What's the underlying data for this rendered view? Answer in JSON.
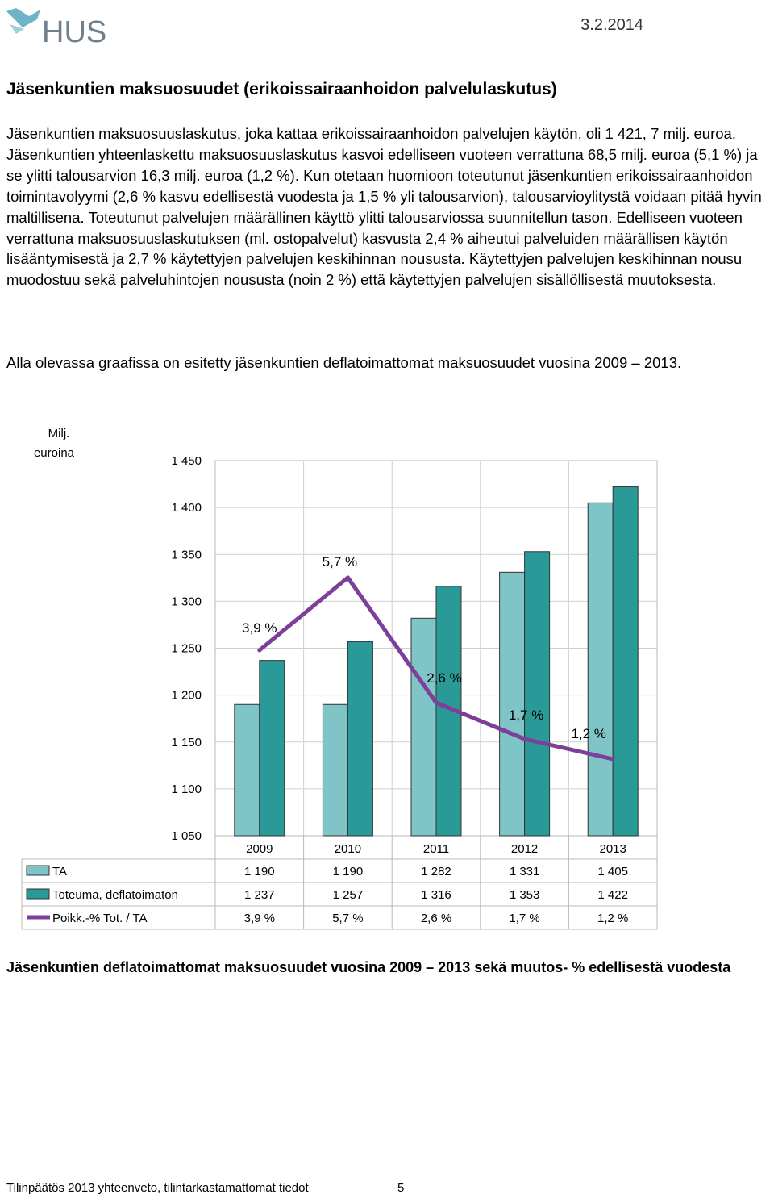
{
  "header": {
    "logo_text": "HUS",
    "date": "3.2.2014"
  },
  "section_title": "Jäsenkuntien maksuosuudet (erikoissairaanhoidon palvelulaskutus)",
  "paragraphs": [
    "Jäsenkuntien maksuosuuslaskutus, joka kattaa erikoissairaanhoidon palvelujen käytön, oli 1 421, 7 milj. euroa. Jäsenkuntien yhteenlaskettu maksuosuuslaskutus kasvoi edelliseen vuoteen verrattuna 68,5 milj. euroa (5,1 %) ja se ylitti talousarvion 16,3 milj. euroa (1,2 %). Kun otetaan huomioon toteutunut jäsenkuntien erikoissairaanhoidon toimintavolyymi (2,6 % kasvu edellisestä vuodesta ja 1,5 % yli talousarvion), talousarvioylitystä voidaan pitää hyvin maltillisena. Toteutunut palvelujen määrällinen käyttö ylitti talousarviossa suunnitellun tason. Edelliseen vuoteen verrattuna maksuosuuslaskutuksen (ml. ostopalvelut) kasvusta 2,4 % aiheutui palveluiden määrällisen käytön lisääntymisestä ja 2,7 % käytettyjen palvelujen keskihinnan noususta. Käytettyjen palvelujen keskihinnan nousu muodostuu sekä palveluhintojen noususta (noin 2 %) että käytettyjen palvelujen sisällöllisestä muutoksesta.",
    "Alla olevassa graafissa on esitetty jäsenkuntien deflatoimattomat maksuosuudet vuosina 2009 – 2013."
  ],
  "chart_data": {
    "type": "bar",
    "unit_label": "Milj. euroina",
    "categories": [
      "2009",
      "2010",
      "2011",
      "2012",
      "2013"
    ],
    "yticks": [
      "1 450",
      "1 400",
      "1 350",
      "1 300",
      "1 250",
      "1 200",
      "1 150",
      "1 100",
      "1 050"
    ],
    "ylim": [
      1050,
      1450
    ],
    "series": [
      {
        "name": "TA",
        "kind": "bar",
        "color": "#7fc4c6",
        "values": [
          1190,
          1190,
          1282,
          1331,
          1405
        ],
        "labels": [
          "1 190",
          "1 190",
          "1 282",
          "1 331",
          "1 405"
        ]
      },
      {
        "name": "Toteuma, deflatoimaton",
        "kind": "bar",
        "color": "#2a9a98",
        "values": [
          1237,
          1257,
          1316,
          1353,
          1422
        ],
        "labels": [
          "1 237",
          "1 257",
          "1 316",
          "1 353",
          "1 422"
        ]
      },
      {
        "name": "Poikk.-% Tot. / TA",
        "kind": "line",
        "color": "#7d3f97",
        "values": [
          3.9,
          5.7,
          2.6,
          1.7,
          1.2
        ],
        "labels": [
          "3,9 %",
          "5,7 %",
          "2,6 %",
          "1,7 %",
          "1,2 %"
        ],
        "y2lim": [
          -0.7,
          8.6
        ]
      }
    ],
    "grid": true,
    "legend": "data-table"
  },
  "caption": "Jäsenkuntien deflatoimattomat maksuosuudet vuosina 2009 – 2013 sekä muutos- % edellisestä vuodesta",
  "footer": {
    "text": "Tilinpäätös 2013 yhteenveto, tilintarkastamattomat tiedot",
    "page": "5"
  }
}
